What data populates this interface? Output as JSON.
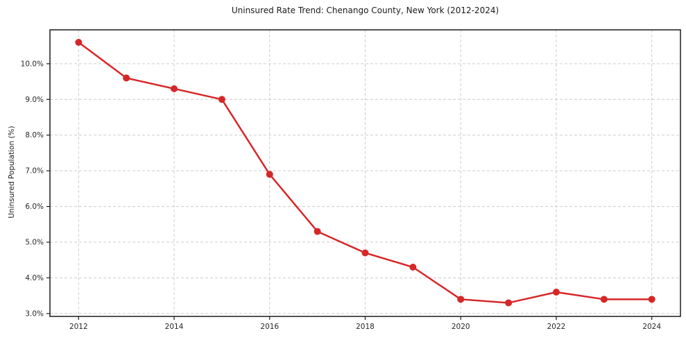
{
  "chart_data": {
    "type": "line",
    "title": "Uninsured Rate Trend: Chenango County, New York (2012-2024)",
    "xlabel": "",
    "ylabel": "Uninsured Population (%)",
    "series": [
      {
        "name": "Uninsured rate",
        "x": [
          2012,
          2013,
          2014,
          2015,
          2016,
          2017,
          2018,
          2019,
          2020,
          2021,
          2022,
          2023,
          2024
        ],
        "values": [
          10.6,
          9.6,
          9.3,
          9.0,
          6.9,
          5.3,
          4.7,
          4.3,
          3.4,
          3.3,
          3.6,
          3.4,
          3.4
        ]
      }
    ],
    "xticks": [
      2012,
      2014,
      2016,
      2018,
      2020,
      2022,
      2024
    ],
    "xtick_labels": [
      "2012",
      "2014",
      "2016",
      "2018",
      "2020",
      "2022",
      "2024"
    ],
    "ytick_values": [
      3,
      4,
      5,
      6,
      7,
      8,
      9,
      10
    ],
    "ytick_labels": [
      "3.0%",
      "4.0%",
      "5.0%",
      "6.0%",
      "7.0%",
      "8.0%",
      "9.0%",
      "10.0%"
    ],
    "xlim": [
      2011.4,
      2024.6
    ],
    "ylim": [
      2.92,
      10.95
    ],
    "grid": true,
    "grid_style": "dashed",
    "legend_position": "none",
    "colors": {
      "line": "#d62728",
      "marker": "#d62728",
      "grid": "#cccccc",
      "spine": "#1a1a1a",
      "tick_text": "#262626"
    }
  }
}
